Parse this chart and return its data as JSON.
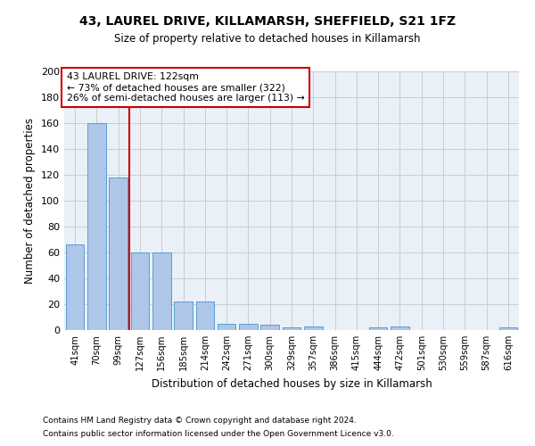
{
  "title": "43, LAUREL DRIVE, KILLAMARSH, SHEFFIELD, S21 1FZ",
  "subtitle": "Size of property relative to detached houses in Killamarsh",
  "xlabel": "Distribution of detached houses by size in Killamarsh",
  "ylabel": "Number of detached properties",
  "categories": [
    "41sqm",
    "70sqm",
    "99sqm",
    "127sqm",
    "156sqm",
    "185sqm",
    "214sqm",
    "242sqm",
    "271sqm",
    "300sqm",
    "329sqm",
    "357sqm",
    "386sqm",
    "415sqm",
    "444sqm",
    "472sqm",
    "501sqm",
    "530sqm",
    "559sqm",
    "587sqm",
    "616sqm"
  ],
  "values": [
    66,
    160,
    118,
    60,
    60,
    22,
    22,
    5,
    5,
    4,
    2,
    3,
    0,
    0,
    2,
    3,
    0,
    0,
    0,
    0,
    2
  ],
  "bar_color": "#aec6e8",
  "bar_edge_color": "#5a9fd4",
  "grid_color": "#cccccc",
  "bg_color": "#eaf0f8",
  "annotation_box_color": "#cc0000",
  "property_label": "43 LAUREL DRIVE: 122sqm",
  "annotation_line1": "← 73% of detached houses are smaller (322)",
  "annotation_line2": "26% of semi-detached houses are larger (113) →",
  "vline_x_index": 2.5,
  "ylim": [
    0,
    200
  ],
  "yticks": [
    0,
    20,
    40,
    60,
    80,
    100,
    120,
    140,
    160,
    180,
    200
  ],
  "footnote1": "Contains HM Land Registry data © Crown copyright and database right 2024.",
  "footnote2": "Contains public sector information licensed under the Open Government Licence v3.0."
}
